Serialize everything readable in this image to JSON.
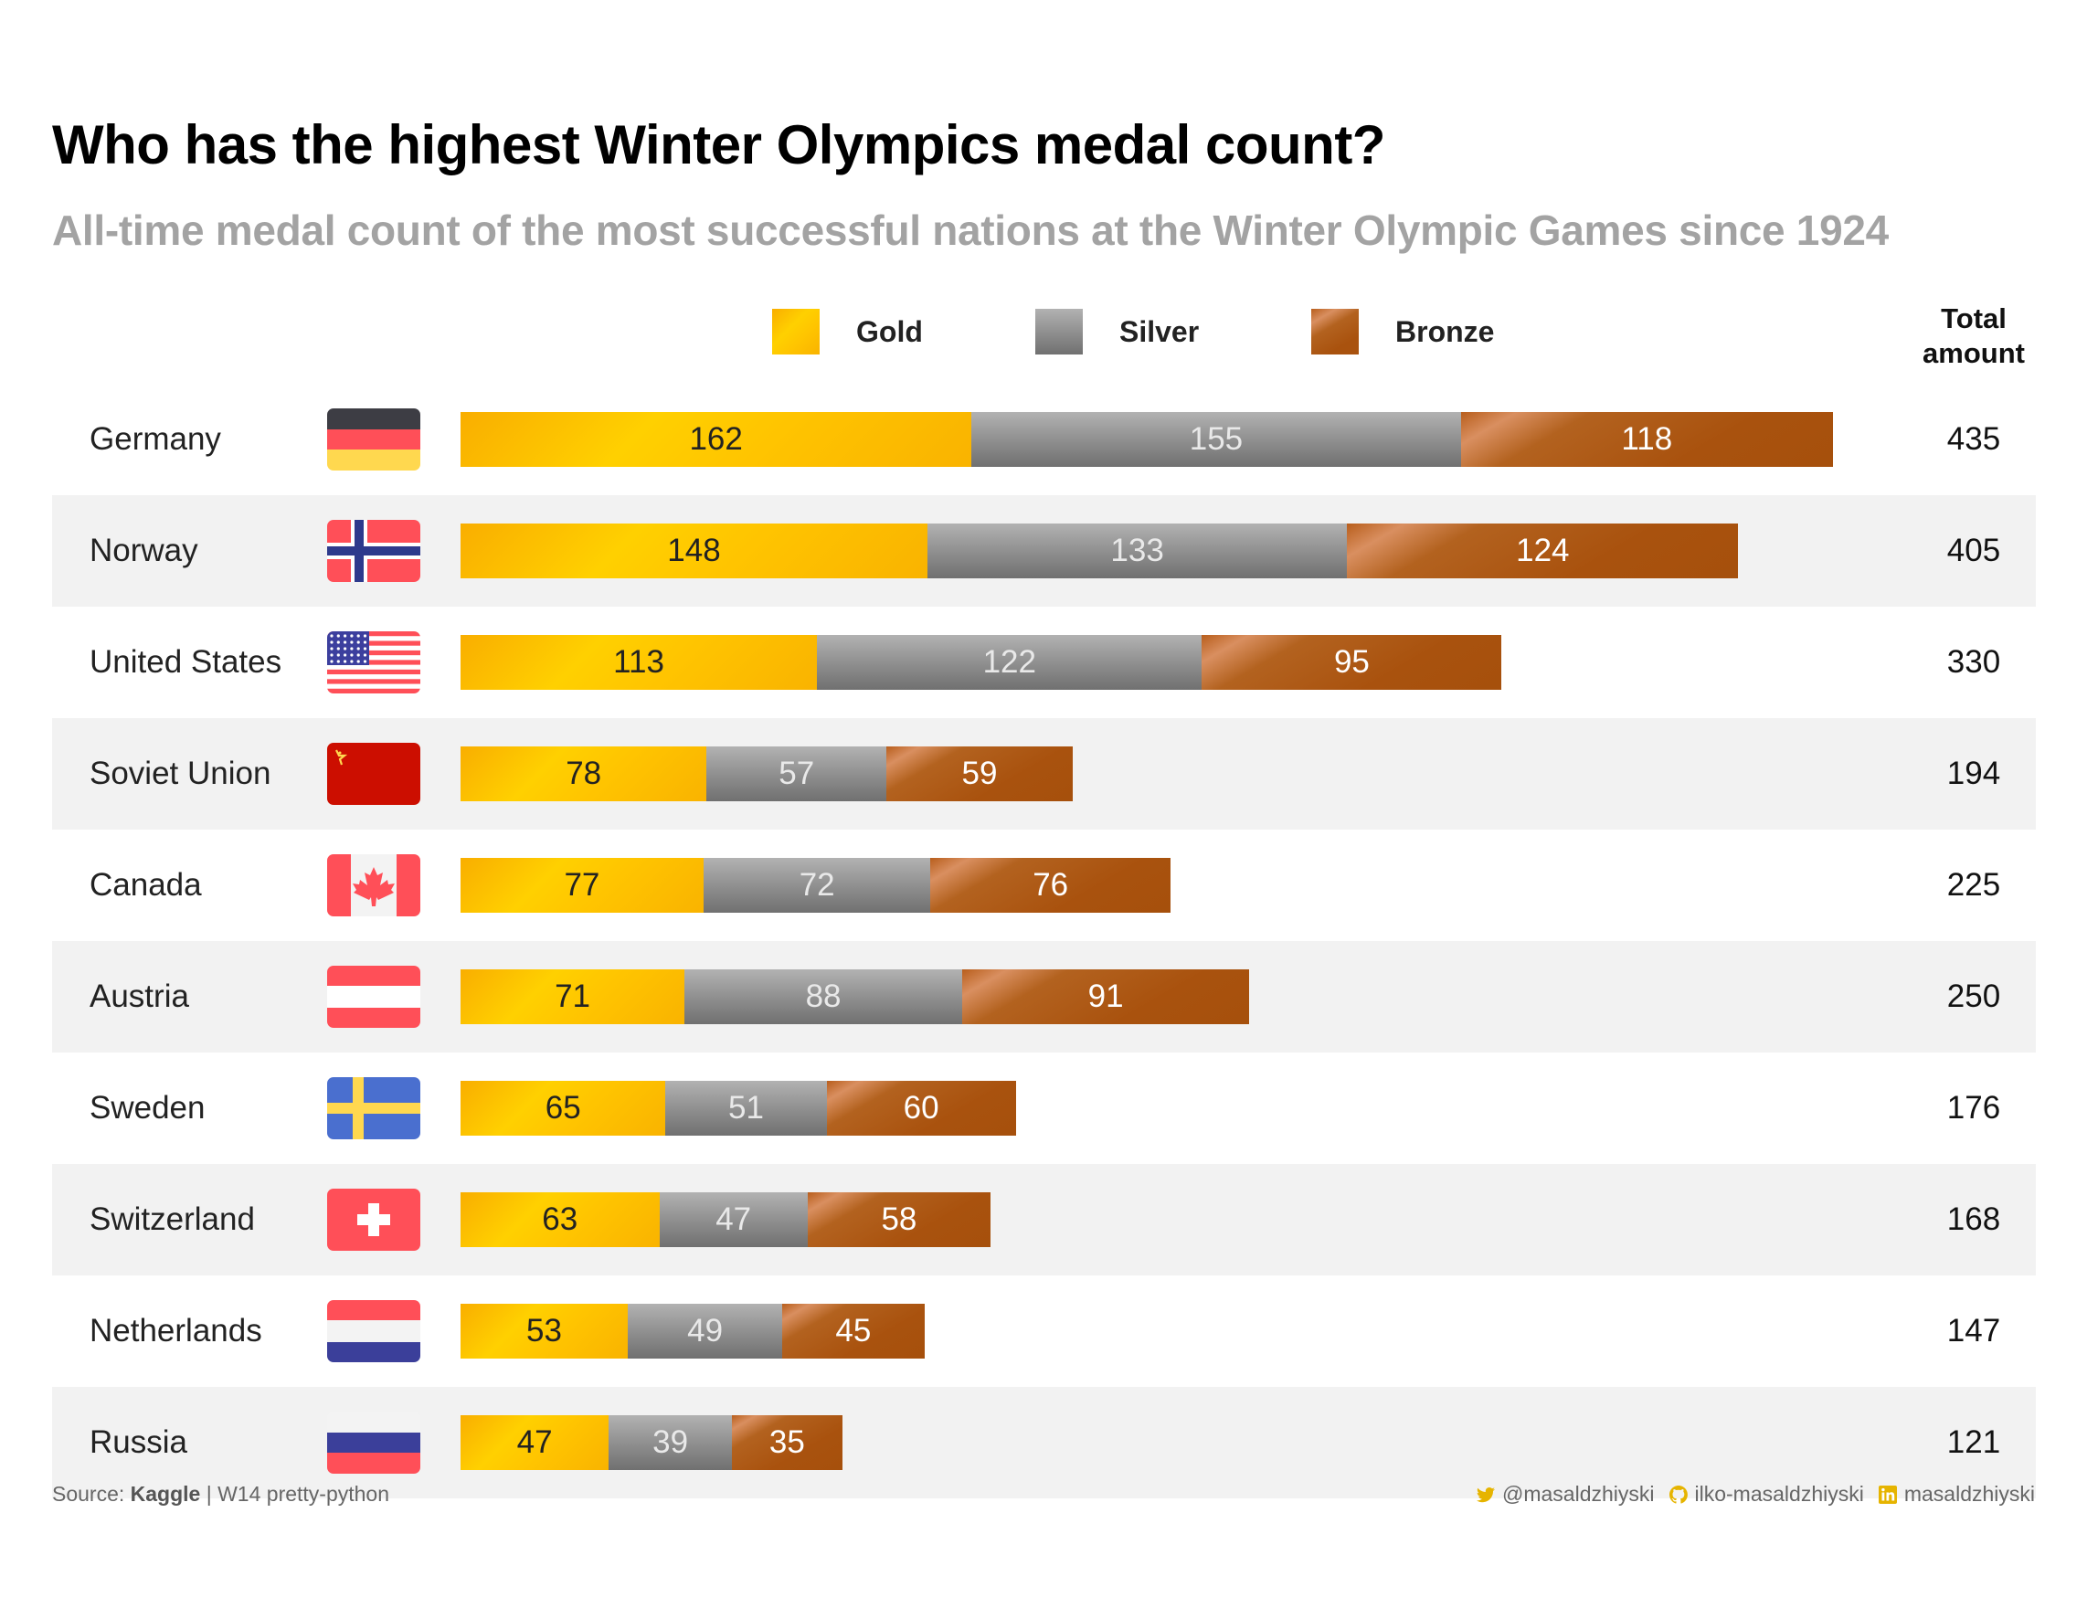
{
  "title": "Who has the highest Winter Olympics medal count?",
  "subtitle": "All-time medal count of the most successful nations at the Winter Olympic Games since 1924",
  "legend": [
    {
      "name": "Gold",
      "color": "#ffc400"
    },
    {
      "name": "Silver",
      "color": "#8d8d8d"
    },
    {
      "name": "Bronze",
      "color": "#a9520e"
    }
  ],
  "total_header": {
    "line1": "Total",
    "line2": "amount"
  },
  "footer": {
    "source_prefix": "Source:",
    "source_name": "Kaggle",
    "source_suffix": "| W14 pretty-python",
    "twitter": "@masaldzhiyski",
    "github": "ilko-masaldzhiyski",
    "linkedin": "masaldzhiyski"
  },
  "chart_data": {
    "type": "bar",
    "orientation": "horizontal",
    "stacked": true,
    "categories": [
      "Germany",
      "Norway",
      "United States",
      "Soviet Union",
      "Canada",
      "Austria",
      "Sweden",
      "Switzerland",
      "Netherlands",
      "Russia"
    ],
    "series": [
      {
        "name": "Gold",
        "values": [
          162,
          148,
          113,
          78,
          77,
          71,
          65,
          63,
          53,
          47
        ]
      },
      {
        "name": "Silver",
        "values": [
          155,
          133,
          122,
          57,
          72,
          88,
          51,
          47,
          49,
          39
        ]
      },
      {
        "name": "Bronze",
        "values": [
          118,
          124,
          95,
          59,
          76,
          91,
          60,
          58,
          45,
          35
        ]
      }
    ],
    "totals": [
      435,
      405,
      330,
      194,
      225,
      250,
      176,
      168,
      147,
      121
    ],
    "xlim": [
      0,
      435
    ],
    "flags": [
      "germany",
      "norway",
      "united-states",
      "soviet-union",
      "canada",
      "austria",
      "sweden",
      "switzerland",
      "netherlands",
      "russia"
    ],
    "legend_position": "top",
    "grid": false
  }
}
